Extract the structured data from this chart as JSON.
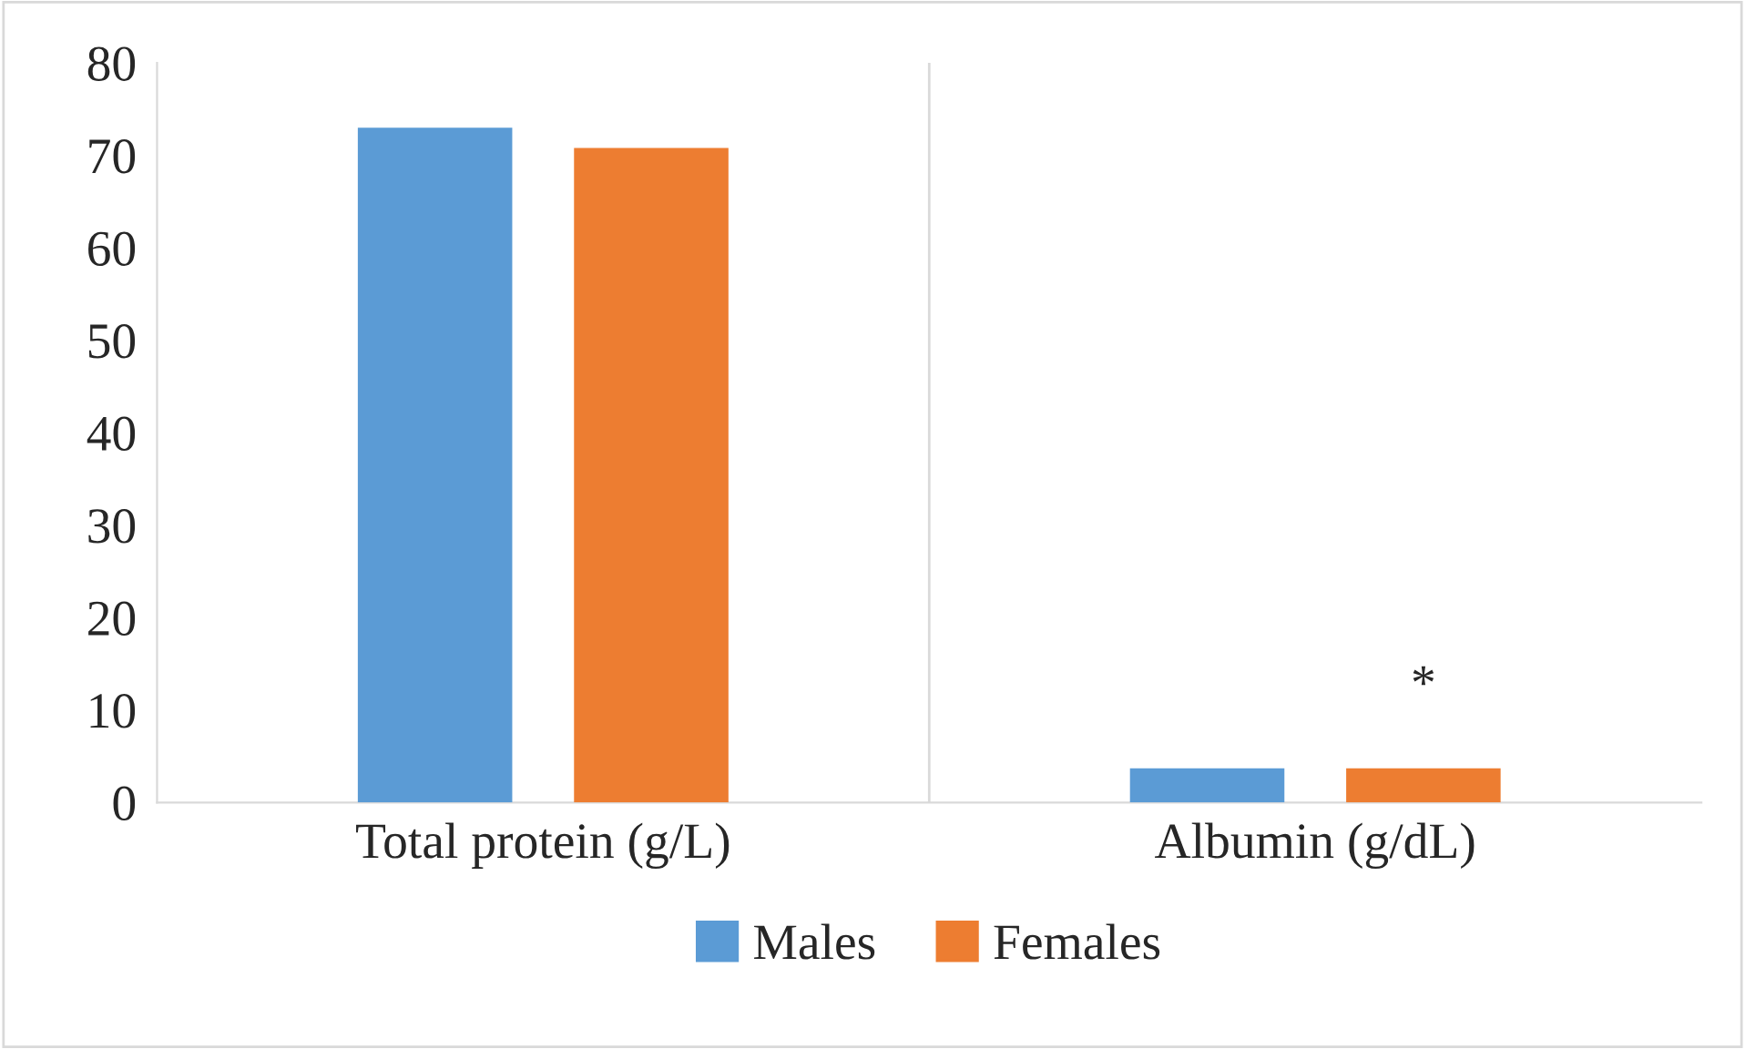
{
  "chart_data": {
    "type": "bar",
    "categories": [
      "Total protein (g/L)",
      "Albumin (g/dL)"
    ],
    "series": [
      {
        "name": "Males",
        "color": "#5b9bd5",
        "values": [
          73,
          3.7
        ]
      },
      {
        "name": "Females",
        "color": "#ed7d31",
        "values": [
          70.8,
          3.7
        ]
      }
    ],
    "ylim": [
      0,
      80
    ],
    "yticks": [
      0,
      10,
      20,
      30,
      40,
      50,
      60,
      70,
      80
    ],
    "annotations": [
      "*"
    ],
    "grid": "x",
    "legend": "bottom"
  }
}
